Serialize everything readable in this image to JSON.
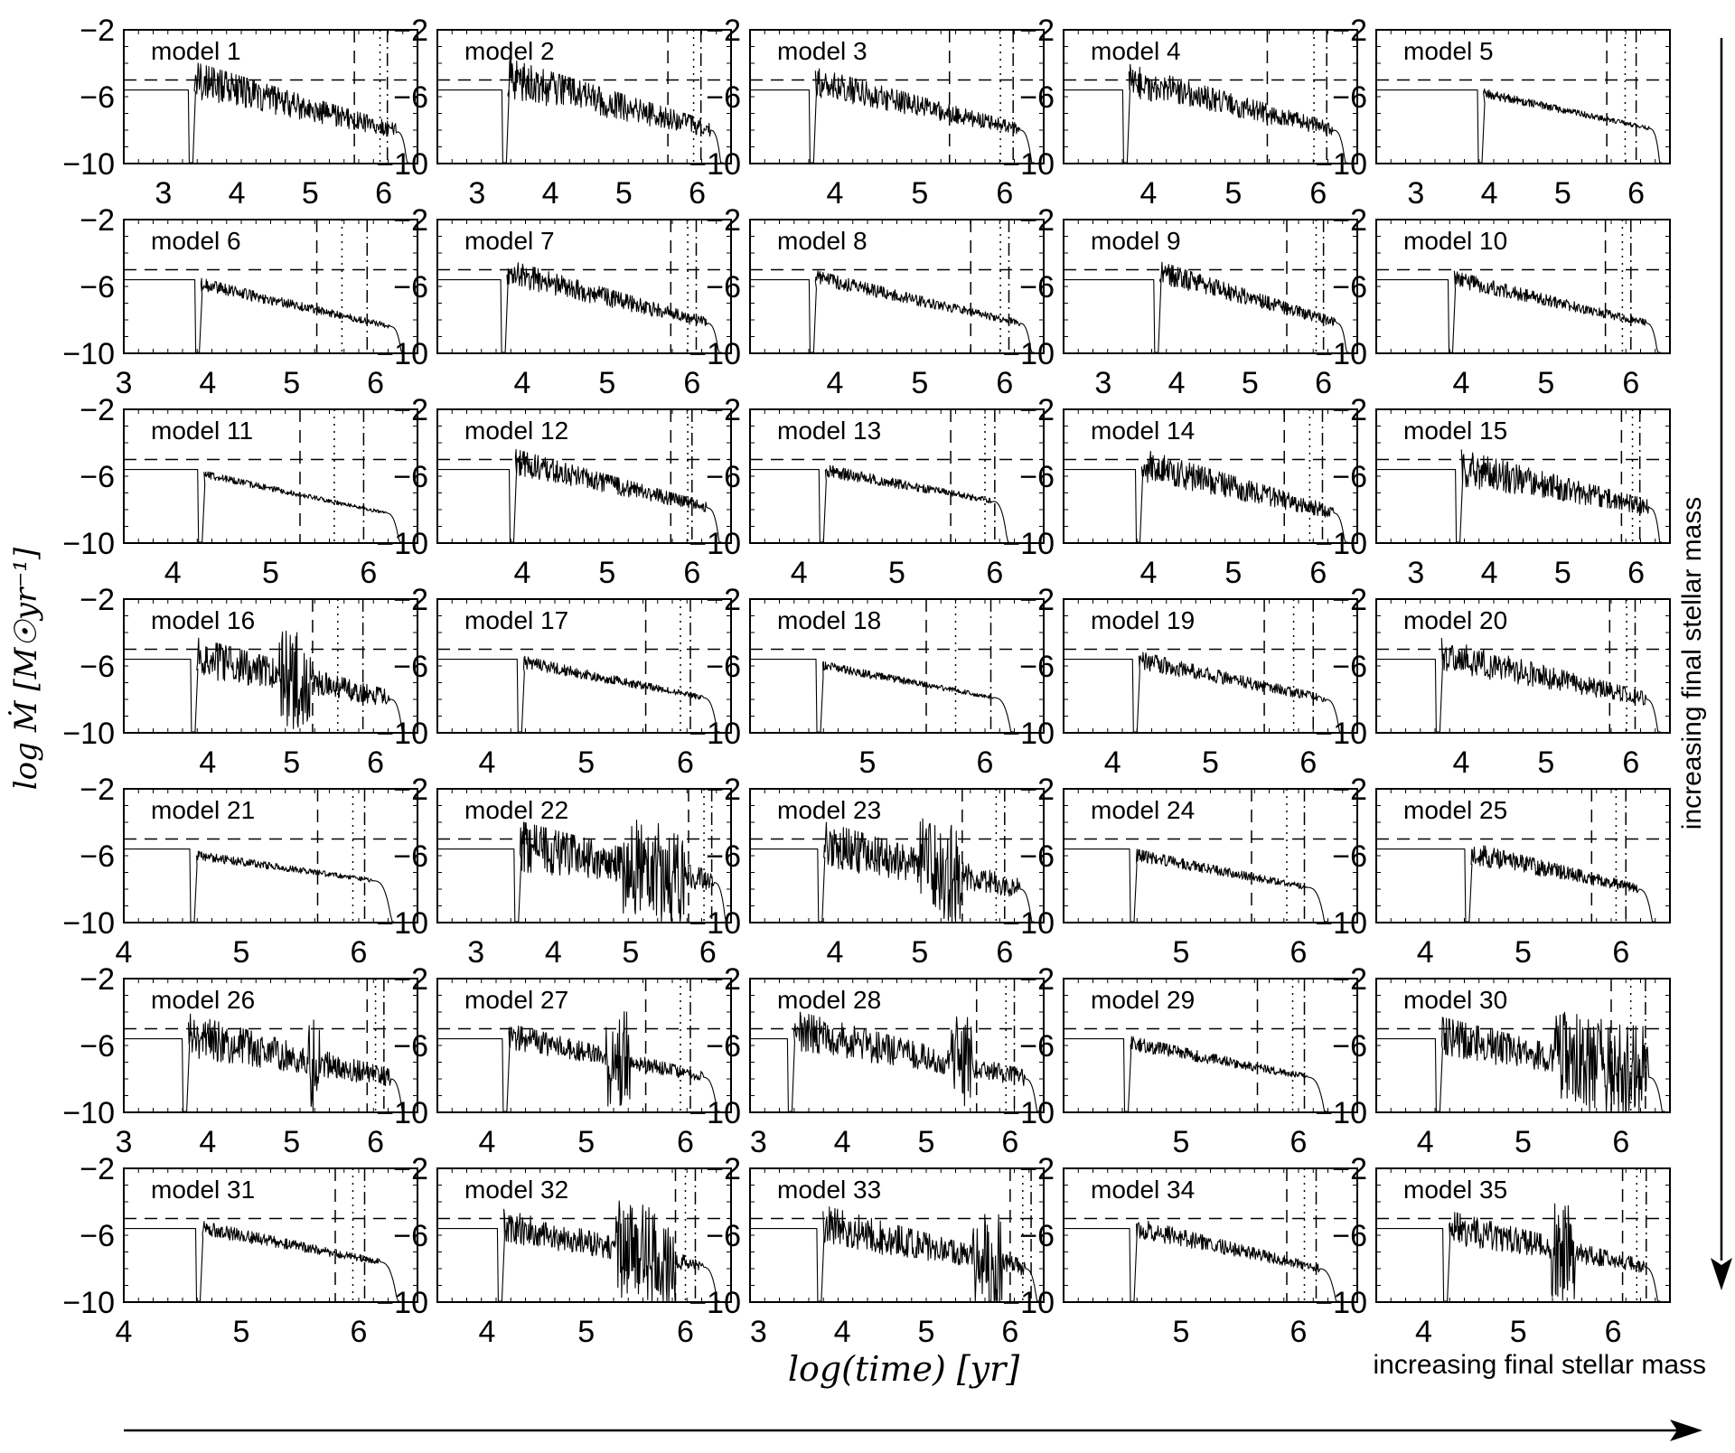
{
  "figure": {
    "ylabel": "log Ṁ [M☉yr⁻¹]",
    "xlabel": "log(time) [yr]",
    "arrow_right_label": "increasing final stellar mass",
    "arrow_down_label": "increasing final stellar mass",
    "ytick_labels": [
      "−2",
      "−6",
      "−10"
    ]
  },
  "chart_data": [
    {
      "type": "line",
      "title": "model 1",
      "xlim": [
        2.46,
        6.46
      ],
      "ylim": [
        -10,
        -2
      ],
      "xticks": [
        3,
        4,
        5,
        6
      ],
      "t_start": 3.4,
      "t_end": 6.35,
      "peak": -5.1,
      "end_val": -8.1,
      "noise": 1.0,
      "floor": -8.0,
      "chaos": 0,
      "lines": [
        5.6,
        5.95,
        6.05
      ]
    },
    {
      "type": "line",
      "title": "model 2",
      "xlim": [
        2.46,
        6.46
      ],
      "ylim": [
        -10,
        -2
      ],
      "xticks": [
        3,
        4,
        5,
        6
      ],
      "t_start": 3.4,
      "t_end": 6.35,
      "peak": -5.0,
      "end_val": -8.0,
      "noise": 1.1,
      "floor": -7.8,
      "chaos": 0,
      "lines": [
        5.6,
        5.95,
        6.05
      ]
    },
    {
      "type": "line",
      "title": "model 3",
      "xlim": [
        3.0,
        6.46
      ],
      "ylim": [
        -10,
        -2
      ],
      "xticks": [
        4,
        5,
        6
      ],
      "t_start": 3.75,
      "t_end": 6.35,
      "peak": -5.2,
      "end_val": -8.0,
      "noise": 0.8,
      "floor": -8.0,
      "chaos": 0,
      "lines": [
        5.35,
        5.95,
        6.1
      ]
    },
    {
      "type": "line",
      "title": "model 4",
      "xlim": [
        3.0,
        6.46
      ],
      "ylim": [
        -10,
        -2
      ],
      "xticks": [
        4,
        5,
        6
      ],
      "t_start": 3.75,
      "t_end": 6.35,
      "peak": -5.1,
      "end_val": -8.0,
      "noise": 0.9,
      "floor": -8.0,
      "chaos": 0,
      "lines": [
        5.4,
        5.95,
        6.1
      ]
    },
    {
      "type": "line",
      "title": "model 5",
      "xlim": [
        2.46,
        6.46
      ],
      "ylim": [
        -10,
        -2
      ],
      "xticks": [
        3,
        4,
        5,
        6
      ],
      "t_start": 3.9,
      "t_end": 6.35,
      "peak": -5.8,
      "end_val": -7.9,
      "noise": 0.25,
      "floor": -7.9,
      "chaos": 0,
      "lines": [
        5.6,
        5.85,
        6.0
      ]
    },
    {
      "type": "line",
      "title": "model 6",
      "xlim": [
        3.0,
        6.5
      ],
      "ylim": [
        -10,
        -2
      ],
      "xticks": [
        3,
        4,
        5,
        6
      ],
      "t_start": 3.9,
      "t_end": 6.35,
      "peak": -5.9,
      "end_val": -8.4,
      "noise": 0.35,
      "floor": -8.4,
      "chaos": 0,
      "lines": [
        5.3,
        5.6,
        5.9
      ]
    },
    {
      "type": "line",
      "title": "model 7",
      "xlim": [
        3.0,
        6.46
      ],
      "ylim": [
        -10,
        -2
      ],
      "xticks": [
        4,
        5,
        6
      ],
      "t_start": 3.8,
      "t_end": 6.35,
      "peak": -5.2,
      "end_val": -8.2,
      "noise": 0.7,
      "floor": -8.2,
      "chaos": 0,
      "lines": [
        5.75,
        5.95,
        6.05
      ]
    },
    {
      "type": "line",
      "title": "model 8",
      "xlim": [
        3.0,
        6.46
      ],
      "ylim": [
        -10,
        -2
      ],
      "xticks": [
        4,
        5,
        6
      ],
      "t_start": 3.75,
      "t_end": 6.35,
      "peak": -5.5,
      "end_val": -8.2,
      "noise": 0.4,
      "floor": -8.2,
      "chaos": 0,
      "lines": [
        5.6,
        5.95,
        6.05
      ]
    },
    {
      "type": "line",
      "title": "model 9",
      "xlim": [
        2.46,
        6.46
      ],
      "ylim": [
        -10,
        -2
      ],
      "xticks": [
        3,
        4,
        5,
        6
      ],
      "t_start": 3.75,
      "t_end": 6.35,
      "peak": -5.2,
      "end_val": -8.2,
      "noise": 0.6,
      "floor": -8.2,
      "chaos": 0,
      "lines": [
        5.5,
        5.9,
        6.0
      ]
    },
    {
      "type": "line",
      "title": "model 10",
      "xlim": [
        3.0,
        6.46
      ],
      "ylim": [
        -10,
        -2
      ],
      "xticks": [
        4,
        5,
        6
      ],
      "t_start": 3.9,
      "t_end": 6.35,
      "peak": -5.6,
      "end_val": -8.2,
      "noise": 0.45,
      "floor": -8.2,
      "chaos": 0,
      "lines": [
        5.7,
        5.9,
        6.0
      ]
    },
    {
      "type": "line",
      "title": "model 11",
      "xlim": [
        3.5,
        6.5
      ],
      "ylim": [
        -10,
        -2
      ],
      "xticks": [
        4,
        5,
        6
      ],
      "t_start": 4.3,
      "t_end": 6.35,
      "peak": -5.9,
      "end_val": -8.2,
      "noise": 0.2,
      "floor": -8.2,
      "chaos": 0,
      "lines": [
        5.3,
        5.65,
        5.95
      ]
    },
    {
      "type": "line",
      "title": "model 12",
      "xlim": [
        3.0,
        6.46
      ],
      "ylim": [
        -10,
        -2
      ],
      "xticks": [
        4,
        5,
        6
      ],
      "t_start": 3.9,
      "t_end": 6.35,
      "peak": -5.2,
      "end_val": -7.9,
      "noise": 0.7,
      "floor": -7.9,
      "chaos": 0,
      "lines": [
        5.75,
        5.95,
        6.0
      ]
    },
    {
      "type": "line",
      "title": "model 13",
      "xlim": [
        3.5,
        6.5
      ],
      "ylim": [
        -10,
        -2
      ],
      "xticks": [
        4,
        5,
        6
      ],
      "t_start": 4.25,
      "t_end": 6.15,
      "peak": -5.7,
      "end_val": -7.5,
      "noise": 0.35,
      "floor": -7.5,
      "chaos": 0,
      "lines": [
        5.55,
        5.9,
        6.0
      ]
    },
    {
      "type": "line",
      "title": "model 14",
      "xlim": [
        3.0,
        6.46
      ],
      "ylim": [
        -10,
        -2
      ],
      "xticks": [
        4,
        5,
        6
      ],
      "t_start": 3.9,
      "t_end": 6.35,
      "peak": -5.4,
      "end_val": -8.2,
      "noise": 0.9,
      "floor": -8.2,
      "chaos": 0,
      "lines": [
        5.6,
        5.9,
        6.05
      ]
    },
    {
      "type": "line",
      "title": "model 15",
      "xlim": [
        2.46,
        6.46
      ],
      "ylim": [
        -10,
        -2
      ],
      "xticks": [
        3,
        4,
        5,
        6
      ],
      "t_start": 3.6,
      "t_end": 6.35,
      "peak": -5.6,
      "end_val": -7.9,
      "noise": 1.0,
      "floor": -7.9,
      "chaos": 0,
      "lines": [
        5.8,
        5.95,
        6.05
      ]
    },
    {
      "type": "line",
      "title": "model 16",
      "xlim": [
        3.0,
        6.5
      ],
      "ylim": [
        -10,
        -2
      ],
      "xticks": [
        4,
        5,
        6
      ],
      "t_start": 3.85,
      "t_end": 6.35,
      "peak": -5.6,
      "end_val": -8.0,
      "noise": 1.1,
      "floor": -8.0,
      "chaos": 1,
      "chaos_range": [
        4.85,
        5.25
      ],
      "lines": [
        5.25,
        5.55,
        5.85
      ]
    },
    {
      "type": "line",
      "title": "model 17",
      "xlim": [
        3.5,
        6.46
      ],
      "ylim": [
        -10,
        -2
      ],
      "xticks": [
        4,
        5,
        6
      ],
      "t_start": 4.35,
      "t_end": 6.35,
      "peak": -5.8,
      "end_val": -7.9,
      "noise": 0.35,
      "floor": -7.9,
      "chaos": 0,
      "lines": [
        5.6,
        5.95,
        6.05
      ]
    },
    {
      "type": "line",
      "title": "model 18",
      "xlim": [
        4.0,
        6.5
      ],
      "ylim": [
        -10,
        -2
      ],
      "xticks": [
        5,
        6
      ],
      "t_start": 4.6,
      "t_end": 6.25,
      "peak": -6.0,
      "end_val": -7.9,
      "noise": 0.25,
      "floor": -7.9,
      "chaos": 0,
      "lines": [
        5.5,
        5.75,
        6.05
      ]
    },
    {
      "type": "line",
      "title": "model 19",
      "xlim": [
        3.5,
        6.5
      ],
      "ylim": [
        -10,
        -2
      ],
      "xticks": [
        4,
        5,
        6
      ],
      "t_start": 4.25,
      "t_end": 6.35,
      "peak": -5.7,
      "end_val": -8.0,
      "noise": 0.5,
      "floor": -8.0,
      "chaos": 0,
      "lines": [
        5.55,
        5.85,
        6.05
      ]
    },
    {
      "type": "line",
      "title": "model 20",
      "xlim": [
        3.0,
        6.46
      ],
      "ylim": [
        -10,
        -2
      ],
      "xticks": [
        4,
        5,
        6
      ],
      "t_start": 3.75,
      "t_end": 6.35,
      "peak": -5.4,
      "end_val": -8.0,
      "noise": 0.9,
      "floor": -8.0,
      "chaos": 0,
      "lines": [
        5.75,
        5.95,
        6.05
      ]
    },
    {
      "type": "line",
      "title": "model 21",
      "xlim": [
        4.0,
        6.5
      ],
      "ylim": [
        -10,
        -2
      ],
      "xticks": [
        4,
        5,
        6
      ],
      "t_start": 4.6,
      "t_end": 6.3,
      "peak": -6.0,
      "end_val": -7.5,
      "noise": 0.25,
      "floor": -7.5,
      "chaos": 0,
      "lines": [
        5.65,
        5.95,
        6.05
      ]
    },
    {
      "type": "line",
      "title": "model 22",
      "xlim": [
        2.5,
        6.3
      ],
      "ylim": [
        -10,
        -2
      ],
      "xticks": [
        3,
        4,
        5,
        6
      ],
      "t_start": 3.55,
      "t_end": 6.25,
      "peak": -5.6,
      "end_val": -7.6,
      "noise": 1.4,
      "floor": -7.6,
      "chaos": 1,
      "chaos_range": [
        4.9,
        5.7
      ],
      "lines": [
        5.75,
        5.95,
        6.05
      ]
    },
    {
      "type": "line",
      "title": "model 23",
      "xlim": [
        3.0,
        6.46
      ],
      "ylim": [
        -10,
        -2
      ],
      "xticks": [
        4,
        5,
        6
      ],
      "t_start": 3.85,
      "t_end": 6.35,
      "peak": -5.5,
      "end_val": -8.0,
      "noise": 1.3,
      "floor": -8.0,
      "chaos": 1,
      "chaos_range": [
        5.0,
        5.5
      ],
      "lines": [
        5.5,
        5.9,
        6.0
      ]
    },
    {
      "type": "line",
      "title": "model 24",
      "xlim": [
        4.0,
        6.5
      ],
      "ylim": [
        -10,
        -2
      ],
      "xticks": [
        5,
        6
      ],
      "t_start": 4.6,
      "t_end": 6.25,
      "peak": -6.0,
      "end_val": -7.9,
      "noise": 0.35,
      "floor": -7.9,
      "chaos": 0,
      "lines": [
        5.6,
        5.9,
        6.05
      ]
    },
    {
      "type": "line",
      "title": "model 25",
      "xlim": [
        3.5,
        6.5
      ],
      "ylim": [
        -10,
        -2
      ],
      "xticks": [
        4,
        5,
        6
      ],
      "t_start": 4.45,
      "t_end": 6.35,
      "peak": -5.9,
      "end_val": -8.0,
      "noise": 0.6,
      "floor": -8.0,
      "chaos": 0,
      "lines": [
        5.7,
        5.95,
        6.05
      ]
    },
    {
      "type": "line",
      "title": "model 26",
      "xlim": [
        3.0,
        6.5
      ],
      "ylim": [
        -10,
        -2
      ],
      "xticks": [
        3,
        4,
        5,
        6
      ],
      "t_start": 3.75,
      "t_end": 6.35,
      "peak": -5.5,
      "end_val": -8.0,
      "noise": 1.2,
      "floor": -8.0,
      "chaos": 1,
      "chaos_range": [
        5.2,
        5.35
      ],
      "lines": [
        5.9,
        6.0,
        6.1
      ]
    },
    {
      "type": "line",
      "title": "model 27",
      "xlim": [
        3.5,
        6.46
      ],
      "ylim": [
        -10,
        -2
      ],
      "xticks": [
        4,
        5,
        6
      ],
      "t_start": 4.2,
      "t_end": 6.35,
      "peak": -5.5,
      "end_val": -7.9,
      "noise": 0.7,
      "floor": -7.9,
      "chaos": 1,
      "chaos_range": [
        5.2,
        5.45
      ],
      "lines": [
        5.6,
        5.95,
        6.05
      ]
    },
    {
      "type": "line",
      "title": "model 28",
      "xlim": [
        2.9,
        6.4
      ],
      "ylim": [
        -10,
        -2
      ],
      "xticks": [
        3,
        4,
        5,
        6
      ],
      "t_start": 3.4,
      "t_end": 6.35,
      "peak": -5.2,
      "end_val": -8.0,
      "noise": 1.1,
      "floor": -8.0,
      "chaos": 1,
      "chaos_range": [
        5.3,
        5.55
      ],
      "lines": [
        5.6,
        5.95,
        6.05
      ]
    },
    {
      "type": "line",
      "title": "model 29",
      "xlim": [
        4.0,
        6.5
      ],
      "ylim": [
        -10,
        -2
      ],
      "xticks": [
        5,
        6
      ],
      "t_start": 4.55,
      "t_end": 6.25,
      "peak": -5.9,
      "end_val": -7.9,
      "noise": 0.4,
      "floor": -7.9,
      "chaos": 0,
      "lines": [
        5.65,
        5.95,
        6.05
      ]
    },
    {
      "type": "line",
      "title": "model 30",
      "xlim": [
        3.5,
        6.5
      ],
      "ylim": [
        -10,
        -2
      ],
      "xticks": [
        4,
        5,
        6
      ],
      "t_start": 4.15,
      "t_end": 6.45,
      "peak": -5.6,
      "end_val": -7.9,
      "noise": 1.1,
      "floor": -7.9,
      "chaos": 1,
      "chaos_range": [
        5.3,
        6.4
      ],
      "lines": [
        5.9,
        6.1,
        6.25
      ]
    },
    {
      "type": "line",
      "title": "model 31",
      "xlim": [
        4.0,
        6.5
      ],
      "ylim": [
        -10,
        -2
      ],
      "xticks": [
        4,
        5,
        6
      ],
      "t_start": 4.65,
      "t_end": 6.35,
      "peak": -5.6,
      "end_val": -7.6,
      "noise": 0.4,
      "floor": -7.6,
      "chaos": 0,
      "lines": [
        5.8,
        5.95,
        6.05
      ]
    },
    {
      "type": "line",
      "title": "model 32",
      "xlim": [
        3.5,
        6.46
      ],
      "ylim": [
        -10,
        -2
      ],
      "xticks": [
        4,
        5,
        6
      ],
      "t_start": 4.15,
      "t_end": 6.35,
      "peak": -5.5,
      "end_val": -7.9,
      "noise": 0.9,
      "floor": -7.9,
      "chaos": 1,
      "chaos_range": [
        5.3,
        5.9
      ],
      "lines": [
        5.9,
        6.0,
        6.1
      ]
    },
    {
      "type": "line",
      "title": "model 33",
      "xlim": [
        2.9,
        6.4
      ],
      "ylim": [
        -10,
        -2
      ],
      "xticks": [
        3,
        4,
        5,
        6
      ],
      "t_start": 3.75,
      "t_end": 6.35,
      "peak": -5.5,
      "end_val": -8.0,
      "noise": 1.1,
      "floor": -8.0,
      "chaos": 1,
      "chaos_range": [
        5.55,
        5.9
      ],
      "lines": [
        6.0,
        6.15,
        6.25
      ]
    },
    {
      "type": "line",
      "title": "model 34",
      "xlim": [
        4.0,
        6.5
      ],
      "ylim": [
        -10,
        -2
      ],
      "xticks": [
        5,
        6
      ],
      "t_start": 4.6,
      "t_end": 6.35,
      "peak": -5.6,
      "end_val": -8.0,
      "noise": 0.55,
      "floor": -8.0,
      "chaos": 0,
      "lines": [
        5.9,
        6.05,
        6.15
      ]
    },
    {
      "type": "line",
      "title": "model 35",
      "xlim": [
        3.5,
        6.6
      ],
      "ylim": [
        -10,
        -2
      ],
      "xticks": [
        4,
        5,
        6
      ],
      "t_start": 4.25,
      "t_end": 6.5,
      "peak": -5.6,
      "end_val": -7.9,
      "noise": 0.9,
      "floor": -7.9,
      "chaos": 1,
      "chaos_range": [
        5.35,
        5.6
      ],
      "lines": [
        6.1,
        6.25,
        6.35
      ]
    }
  ]
}
